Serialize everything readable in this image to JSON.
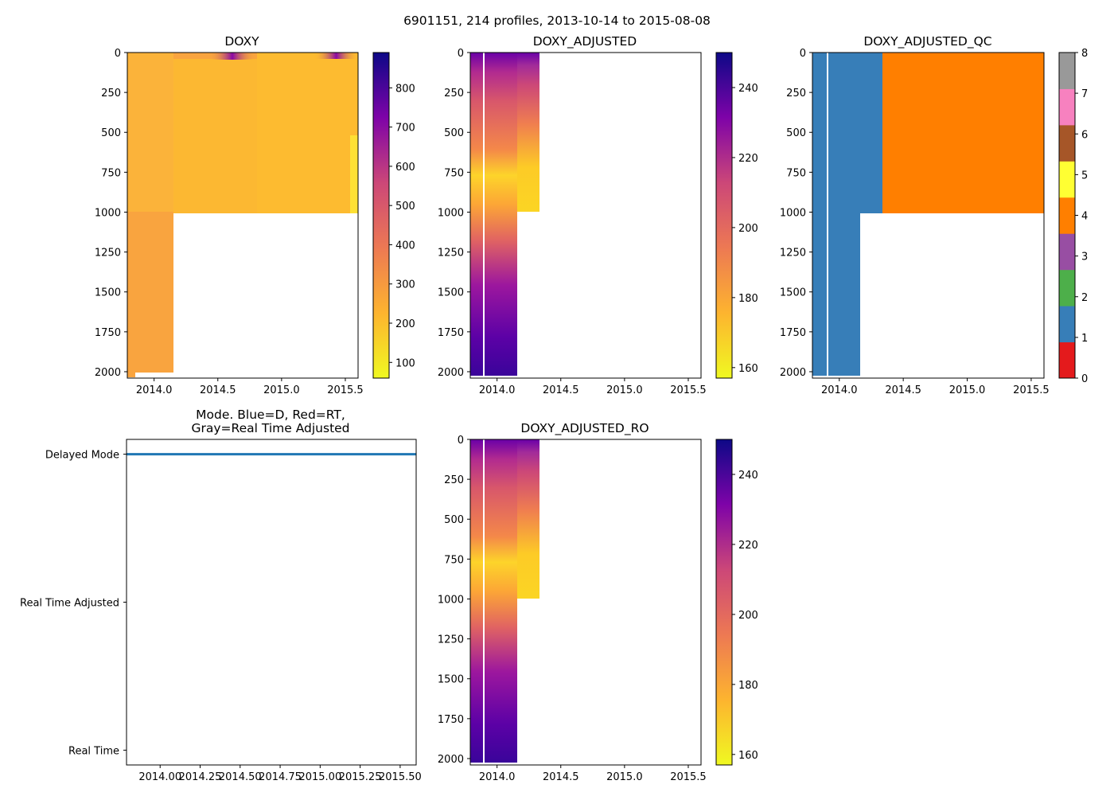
{
  "figure": {
    "suptitle": "6901151, 214 profiles, 2013-10-14 to 2015-08-08"
  },
  "colors": {
    "plasma_low": "#f0f921",
    "plasma_high": "#0d0887",
    "mode_line": "#1f77b4",
    "qc_1": "#377eb8",
    "qc_4": "#ff7f00"
  },
  "chart_data": [
    {
      "type": "heatmap",
      "title": "DOXY",
      "time_range": [
        2013.79,
        2015.6
      ],
      "pressure_range": [
        2040,
        0
      ],
      "xticks": [
        "2014.0",
        "2014.5",
        "2015.0",
        "2015.5"
      ],
      "xtick_values": [
        2014.0,
        2014.5,
        2015.0,
        2015.5
      ],
      "yticks": [
        "0",
        "250",
        "500",
        "750",
        "1000",
        "1250",
        "1500",
        "1750",
        "2000"
      ],
      "ytick_values": [
        0,
        250,
        500,
        750,
        1000,
        1250,
        1500,
        1750,
        2000
      ],
      "colormap": "plasma_r",
      "colorbar_range": [
        60,
        890
      ],
      "colorbar_ticks": [
        "100",
        "200",
        "300",
        "400",
        "500",
        "600",
        "700",
        "800"
      ],
      "colorbar_tick_values": [
        100,
        200,
        300,
        400,
        500,
        600,
        700,
        800
      ],
      "deep_profiles_until": 2014.15,
      "deep_max_pressure": 2000,
      "shallow_max_pressure": 1010
    },
    {
      "type": "heatmap",
      "title": "DOXY_ADJUSTED",
      "time_range": [
        2013.79,
        2015.6
      ],
      "pressure_range": [
        2040,
        0
      ],
      "xticks": [
        "2014.0",
        "2014.5",
        "2015.0",
        "2015.5"
      ],
      "xtick_values": [
        2014.0,
        2014.5,
        2015.0,
        2015.5
      ],
      "yticks": [
        "0",
        "250",
        "500",
        "750",
        "1000",
        "1250",
        "1500",
        "1750",
        "2000"
      ],
      "ytick_values": [
        0,
        250,
        500,
        750,
        1000,
        1250,
        1500,
        1750,
        2000
      ],
      "colormap": "plasma_r",
      "colorbar_range": [
        157,
        250
      ],
      "colorbar_ticks": [
        "160",
        "180",
        "200",
        "220",
        "240"
      ],
      "colorbar_tick_values": [
        160,
        180,
        200,
        220,
        240
      ],
      "deep_profiles_until": 2014.15,
      "data_ends": 2014.33,
      "gap_at": 2013.92
    },
    {
      "type": "heatmap",
      "title": "DOXY_ADJUSTED_QC",
      "time_range": [
        2013.79,
        2015.6
      ],
      "pressure_range": [
        2040,
        0
      ],
      "xticks": [
        "2014.0",
        "2014.5",
        "2015.0",
        "2015.5"
      ],
      "xtick_values": [
        2014.0,
        2014.5,
        2015.0,
        2015.5
      ],
      "yticks": [
        "0",
        "250",
        "500",
        "750",
        "1000",
        "1250",
        "1500",
        "1750",
        "2000"
      ],
      "ytick_values": [
        0,
        250,
        500,
        750,
        1000,
        1250,
        1500,
        1750,
        2000
      ],
      "colormap": "qualitative",
      "colorbar_range": [
        0,
        8
      ],
      "colorbar_ticks": [
        "0",
        "1",
        "2",
        "3",
        "4",
        "5",
        "6",
        "7",
        "8"
      ],
      "colorbar_tick_values": [
        0,
        1,
        2,
        3,
        4,
        5,
        6,
        7,
        8
      ],
      "qc_colors": [
        "#e41a1c",
        "#377eb8",
        "#4daf4a",
        "#984ea3",
        "#ff7f00",
        "#ffff33",
        "#a65628",
        "#f781bf",
        "#999999"
      ],
      "qc1_until": 2014.33,
      "qc4_from": 2014.33
    },
    {
      "type": "line",
      "title_lines": [
        "Mode. Blue=D, Red=RT,",
        "Gray=Real Time Adjusted"
      ],
      "x_range": [
        2013.79,
        2015.6
      ],
      "xticks": [
        "2014.00",
        "2014.25",
        "2014.50",
        "2014.75",
        "2015.00",
        "2015.25",
        "2015.50"
      ],
      "xtick_values": [
        2014.0,
        2014.25,
        2014.5,
        2014.75,
        2015.0,
        2015.25,
        2015.5
      ],
      "yticks": [
        "Delayed Mode",
        "Real Time Adjusted",
        "Real Time"
      ],
      "ytick_values": [
        2,
        1,
        0
      ],
      "series": [
        {
          "name": "mode",
          "x_start": 2013.79,
          "x_end": 2015.6,
          "value": 2
        }
      ]
    },
    {
      "type": "heatmap",
      "title": "DOXY_ADJUSTED_RO",
      "time_range": [
        2013.79,
        2015.6
      ],
      "pressure_range": [
        2040,
        0
      ],
      "xticks": [
        "2014.0",
        "2014.5",
        "2015.0",
        "2015.5"
      ],
      "xtick_values": [
        2014.0,
        2014.5,
        2015.0,
        2015.5
      ],
      "yticks": [
        "0",
        "250",
        "500",
        "750",
        "1000",
        "1250",
        "1500",
        "1750",
        "2000"
      ],
      "ytick_values": [
        0,
        250,
        500,
        750,
        1000,
        1250,
        1500,
        1750,
        2000
      ],
      "colormap": "plasma_r",
      "colorbar_range": [
        157,
        250
      ],
      "colorbar_ticks": [
        "160",
        "180",
        "200",
        "220",
        "240"
      ],
      "colorbar_tick_values": [
        160,
        180,
        200,
        220,
        240
      ],
      "deep_profiles_until": 2014.15,
      "data_ends": 2014.33,
      "gap_at": 2013.92
    }
  ]
}
